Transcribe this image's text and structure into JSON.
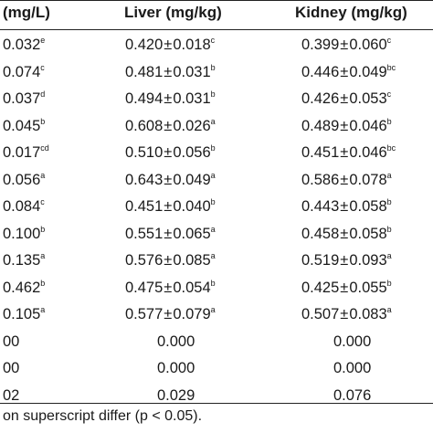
{
  "header": {
    "col1": "(mg/L)",
    "col2": "Liver (mg/kg)",
    "col3": "Kidney (mg/kg)"
  },
  "rows": [
    {
      "c1": "0.032",
      "s1": "e",
      "c2": "0.420",
      "e2": "0.018",
      "s2": "c",
      "c3": "0.399",
      "e3": "0.060",
      "s3": "c"
    },
    {
      "c1": "0.074",
      "s1": "c",
      "c2": "0.481",
      "e2": "0.031",
      "s2": "b",
      "c3": "0.446",
      "e3": "0.049",
      "s3": "bc"
    },
    {
      "c1": "0.037",
      "s1": "d",
      "c2": "0.494",
      "e2": "0.031",
      "s2": "b",
      "c3": "0.426",
      "e3": "0.053",
      "s3": "c"
    },
    {
      "c1": "0.045",
      "s1": "b",
      "c2": "0.608",
      "e2": "0.026",
      "s2": "a",
      "c3": "0.489",
      "e3": "0.046",
      "s3": "b"
    },
    {
      "c1": "0.017",
      "s1": "cd",
      "c2": "0.510",
      "e2": "0.056",
      "s2": "b",
      "c3": "0.451",
      "e3": "0.046",
      "s3": "bc"
    },
    {
      "c1": "0.056",
      "s1": "a",
      "c2": "0.643",
      "e2": "0.049",
      "s2": "a",
      "c3": "0.586",
      "e3": "0.078",
      "s3": "a"
    },
    {
      "c1": "0.084",
      "s1": "c",
      "c2": "0.451",
      "e2": "0.040",
      "s2": "b",
      "c3": "0.443",
      "e3": "0.058",
      "s3": "b"
    },
    {
      "c1": "0.100",
      "s1": "b",
      "c2": "0.551",
      "e2": "0.065",
      "s2": "a",
      "c3": "0.458",
      "e3": "0.058",
      "s3": "b"
    },
    {
      "c1": "0.135",
      "s1": "a",
      "c2": "0.576",
      "e2": "0.085",
      "s2": "a",
      "c3": "0.519",
      "e3": "0.093",
      "s3": "a"
    },
    {
      "c1": "0.462",
      "s1": "b",
      "c2": "0.475",
      "e2": "0.054",
      "s2": "b",
      "c3": "0.425",
      "e3": "0.055",
      "s3": "b"
    },
    {
      "c1": "0.105",
      "s1": "a",
      "c2": "0.577",
      "e2": "0.079",
      "s2": "a",
      "c3": "0.507",
      "e3": "0.083",
      "s3": "a"
    },
    {
      "c1": "00",
      "s1": "",
      "c2": "0.000",
      "e2": "",
      "s2": "",
      "c3": "0.000",
      "e3": "",
      "s3": ""
    },
    {
      "c1": "00",
      "s1": "",
      "c2": "0.000",
      "e2": "",
      "s2": "",
      "c3": "0.000",
      "e3": "",
      "s3": ""
    },
    {
      "c1": "02",
      "s1": "",
      "c2": "0.029",
      "e2": "",
      "s2": "",
      "c3": "0.076",
      "e3": "",
      "s3": ""
    }
  ],
  "plus_minus": "±",
  "footnote": "on superscript differ (p < 0.05)."
}
